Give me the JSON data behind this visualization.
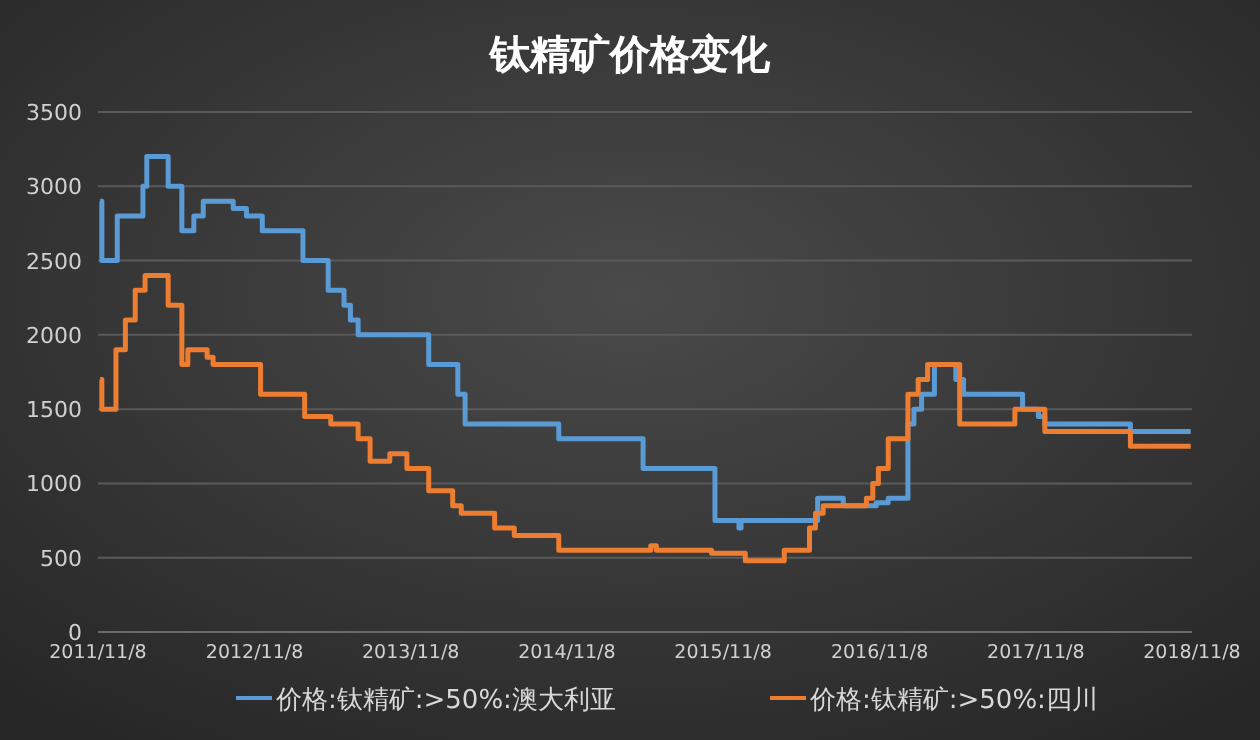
{
  "chart_data": {
    "type": "step",
    "title": "钛精矿价格变化",
    "xlim": [
      "2011-11-08",
      "2018-11-08"
    ],
    "xticks": [
      {
        "value": "2011-11-08",
        "label": "2011/11/8"
      },
      {
        "value": "2012-11-08",
        "label": "2012/11/8"
      },
      {
        "value": "2013-11-08",
        "label": "2013/11/8"
      },
      {
        "value": "2014-11-08",
        "label": "2014/11/8"
      },
      {
        "value": "2015-11-08",
        "label": "2015/11/8"
      },
      {
        "value": "2016-11-08",
        "label": "2016/11/8"
      },
      {
        "value": "2017-11-08",
        "label": "2017/11/8"
      },
      {
        "value": "2018-11-08",
        "label": "2018/11/8"
      }
    ],
    "ylim": [
      0,
      3500
    ],
    "yticks": [
      0,
      500,
      1000,
      1500,
      2000,
      2500,
      3000,
      3500
    ],
    "grid": "y",
    "legend": "bottom",
    "series": [
      {
        "name": "价格:钛精矿:>50%:澳大利亚",
        "color": "#5b9bd5",
        "x": [
          "2011-11-13",
          "2011-11-17",
          "2011-12-23",
          "2012-02-21",
          "2012-03-01",
          "2012-04-20",
          "2012-05-22",
          "2012-06-19",
          "2012-07-11",
          "2012-09-19",
          "2012-10-20",
          "2012-11-26",
          "2013-03-01",
          "2013-04-29",
          "2013-06-05",
          "2013-06-20",
          "2013-07-08",
          "2013-12-20",
          "2014-02-26",
          "2014-03-15",
          "2014-10-20",
          "2015-05-05",
          "2015-10-20",
          "2015-12-15",
          "2015-12-20",
          "2016-06-16",
          "2016-08-15",
          "2016-10-31",
          "2016-11-28",
          "2017-01-13",
          "2017-01-27",
          "2017-02-14",
          "2017-03-16",
          "2017-05-05",
          "2017-05-23",
          "2017-10-08",
          "2017-11-14",
          "2017-11-29",
          "2018-06-17",
          "2018-11-05"
        ],
        "values": [
          2900,
          2500,
          2800,
          3000,
          3200,
          3000,
          2700,
          2800,
          2900,
          2850,
          2800,
          2700,
          2500,
          2300,
          2200,
          2100,
          2000,
          1800,
          1600,
          1400,
          1300,
          1100,
          750,
          700,
          750,
          900,
          850,
          870,
          900,
          1400,
          1500,
          1600,
          1800,
          1700,
          1600,
          1500,
          1450,
          1400,
          1350,
          1350
        ]
      },
      {
        "name": "价格:钛精矿:>50%:四川",
        "color": "#ed7d31",
        "x": [
          "2011-11-13",
          "2011-11-17",
          "2011-12-20",
          "2012-01-11",
          "2012-02-03",
          "2012-02-26",
          "2012-04-20",
          "2012-05-22",
          "2012-06-05",
          "2012-07-20",
          "2012-08-03",
          "2012-11-22",
          "2013-03-05",
          "2013-05-05",
          "2013-07-08",
          "2013-08-05",
          "2013-09-20",
          "2013-10-30",
          "2013-12-20",
          "2014-02-14",
          "2014-03-06",
          "2014-05-23",
          "2014-07-08",
          "2014-10-20",
          "2015-05-23",
          "2015-06-05",
          "2015-10-12",
          "2015-12-30",
          "2016-03-30",
          "2016-05-28",
          "2016-06-11",
          "2016-06-29",
          "2016-10-08",
          "2016-10-23",
          "2016-11-05",
          "2016-11-28",
          "2017-01-13",
          "2017-02-06",
          "2017-02-28",
          "2017-05-14",
          "2017-09-20",
          "2017-11-29",
          "2018-06-17",
          "2018-11-05"
        ],
        "values": [
          1700,
          1500,
          1900,
          2100,
          2300,
          2400,
          2200,
          1800,
          1900,
          1850,
          1800,
          1600,
          1450,
          1400,
          1300,
          1150,
          1200,
          1100,
          950,
          850,
          800,
          700,
          650,
          550,
          580,
          550,
          530,
          480,
          550,
          700,
          800,
          850,
          900,
          1000,
          1100,
          1300,
          1600,
          1700,
          1800,
          1400,
          1500,
          1350,
          1250,
          1250
        ]
      }
    ]
  }
}
